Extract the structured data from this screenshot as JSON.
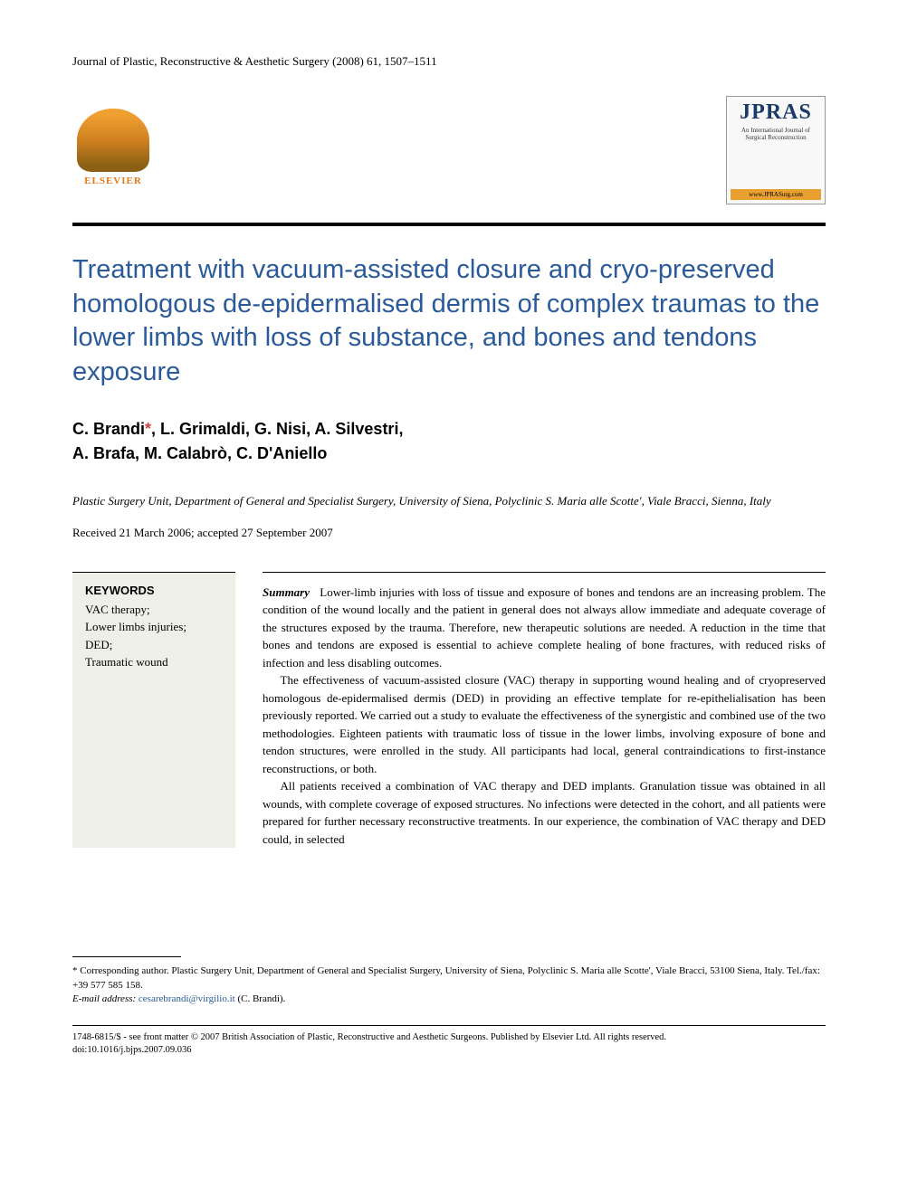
{
  "journal_header": "Journal of Plastic, Reconstructive & Aesthetic Surgery (2008) 61, 1507–1511",
  "publisher_logo": {
    "name": "ELSEVIER"
  },
  "journal_logo": {
    "acronym": "JPRAS",
    "subtitle": "An International Journal of Surgical Reconstruction",
    "url": "www.JPRASurg.com"
  },
  "title": "Treatment with vacuum-assisted closure and cryo-preserved homologous de-epidermalised dermis of complex traumas to the lower limbs with loss of substance, and bones and tendons exposure",
  "authors": "C. Brandi*, L. Grimaldi, G. Nisi, A. Silvestri, A. Brafa, M. Calabrò, C. D'Aniello",
  "affiliation": "Plastic Surgery Unit, Department of General and Specialist Surgery, University of Siena, Polyclinic S. Maria alle Scotte', Viale Bracci, Sienna, Italy",
  "dates": "Received 21 March 2006; accepted 27 September 2007",
  "keywords": {
    "title": "KEYWORDS",
    "items": "VAC therapy;\nLower limbs injuries;\nDED;\nTraumatic wound"
  },
  "summary": {
    "label": "Summary",
    "p1": "Lower-limb injuries with loss of tissue and exposure of bones and tendons are an increasing problem. The condition of the wound locally and the patient in general does not always allow immediate and adequate coverage of the structures exposed by the trauma. Therefore, new therapeutic solutions are needed. A reduction in the time that bones and tendons are exposed is essential to achieve complete healing of bone fractures, with reduced risks of infection and less disabling outcomes.",
    "p2": "The effectiveness of vacuum-assisted closure (VAC) therapy in supporting wound healing and of cryopreserved homologous de-epidermalised dermis (DED) in providing an effective template for re-epithelialisation has been previously reported. We carried out a study to evaluate the effectiveness of the synergistic and combined use of the two methodologies. Eighteen patients with traumatic loss of tissue in the lower limbs, involving exposure of bone and tendon structures, were enrolled in the study. All participants had local, general contraindications to first-instance reconstructions, or both.",
    "p3": "All patients received a combination of VAC therapy and DED implants. Granulation tissue was obtained in all wounds, with complete coverage of exposed structures. No infections were detected in the cohort, and all patients were prepared for further necessary reconstructive treatments. In our experience, the combination of VAC therapy and DED could, in selected"
  },
  "footnote": {
    "text": "* Corresponding author. Plastic Surgery Unit, Department of General and Specialist Surgery, University of Siena, Polyclinic S. Maria alle Scotte', Viale Bracci, 53100 Siena, Italy. Tel./fax: +39 577 585 158.",
    "email_label": "E-mail address:",
    "email": "cesarebrandi@virgilio.it",
    "email_suffix": "(C. Brandi)."
  },
  "copyright": {
    "line1": "1748-6815/$ - see front matter © 2007 British Association of Plastic, Reconstructive and Aesthetic Surgeons. Published by Elsevier Ltd. All rights reserved.",
    "line2": "doi:10.1016/j.bjps.2007.09.036"
  },
  "colors": {
    "title_color": "#2a5a9a",
    "elsevier_orange": "#e67817",
    "star_color": "#d04040",
    "keywords_bg": "#eef0e8",
    "email_color": "#2a5a9a"
  },
  "typography": {
    "title_fontsize": 29,
    "authors_fontsize": 18,
    "body_fontsize": 13,
    "footnote_fontsize": 11,
    "copyright_fontsize": 10.5
  }
}
